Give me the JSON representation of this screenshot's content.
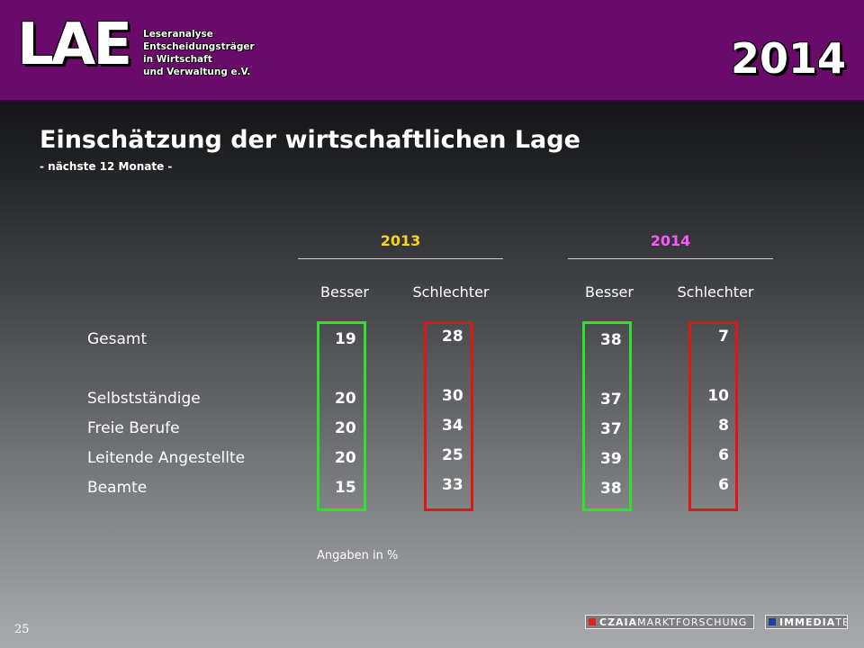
{
  "header": {
    "logo_text": "LAE",
    "org_lines": [
      "Leseranalyse",
      "Entscheidungsträger",
      "in Wirtschaft",
      "und Verwaltung e.V."
    ],
    "year": "2014"
  },
  "title": "Einschätzung der wirtschaftlichen Lage",
  "subtitle": "- nächste 12 Monate -",
  "groups": [
    {
      "label": "2013",
      "color": "#ffd21a"
    },
    {
      "label": "2014",
      "color": "#ff55ff"
    }
  ],
  "columns": [
    "Besser",
    "Schlechter",
    "Besser",
    "Schlechter"
  ],
  "rows": [
    {
      "label": "Gesamt",
      "values": [
        "19",
        "28",
        "38",
        "7"
      ]
    },
    {
      "label": "Selbstständige",
      "values": [
        "20",
        "30",
        "37",
        "10"
      ]
    },
    {
      "label": "Freie Berufe",
      "values": [
        "20",
        "34",
        "37",
        "8"
      ]
    },
    {
      "label": "Leitende Angestellte",
      "values": [
        "20",
        "25",
        "39",
        "6"
      ]
    },
    {
      "label": "Beamte",
      "values": [
        "15",
        "33",
        "38",
        "6"
      ]
    }
  ],
  "box_colors": {
    "besser": "#2ee12e",
    "schlechter": "#e01515"
  },
  "note": "Angaben in %",
  "page_number": "25",
  "footer": {
    "brand1_bold": "CZAIA",
    "brand1_rest": "MARKTFORSCHUNG",
    "brand1_color": "#e0221a",
    "brand2_bold": "IMMEDIA",
    "brand2_rest": "TE",
    "brand2_color": "#1f3fa0"
  }
}
